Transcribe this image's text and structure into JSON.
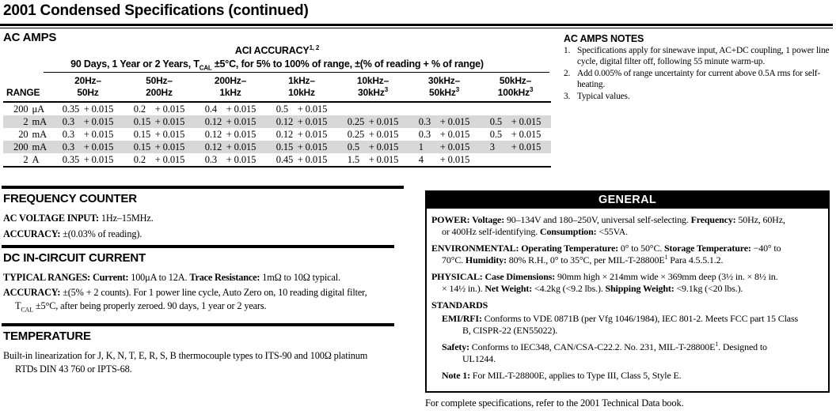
{
  "colors": {
    "ink": "#000000",
    "shaded_row": "#d8d8d8"
  },
  "title": "2001 Condensed Specifications (continued)",
  "footer": "For complete specifications, refer to the 2001 Technical Data book.",
  "ac_amps": {
    "heading": "AC AMPS",
    "table": {
      "title": "ACI ACCURACY",
      "title_sup": "1, 2",
      "subtitle": {
        "t1": "90 Days, 1 Year or 2 Years, T",
        "sub": "CAL",
        "t2": " ±5°C, for 5% to 100% of range, ±(% of reading + % of range)"
      },
      "range_header": "RANGE",
      "columns": [
        {
          "top": "20Hz–",
          "bot": "50Hz",
          "sup": ""
        },
        {
          "top": "50Hz–",
          "bot": "200Hz",
          "sup": ""
        },
        {
          "top": "200Hz–",
          "bot": "1kHz",
          "sup": ""
        },
        {
          "top": "1kHz–",
          "bot": "10kHz",
          "sup": ""
        },
        {
          "top": "10kHz–",
          "bot": "30kHz",
          "sup": "3"
        },
        {
          "top": "30kHz–",
          "bot": "50kHz",
          "sup": "3"
        },
        {
          "top": "50kHz–",
          "bot": "100kHz",
          "sup": "3"
        }
      ],
      "rows": [
        {
          "range": "200",
          "unit": "μA",
          "cells": [
            [
              "0.35",
              "+ 0.015"
            ],
            [
              "0.2",
              "+ 0.015"
            ],
            [
              "0.4",
              "+ 0.015"
            ],
            [
              "0.5",
              "+ 0.015"
            ],
            [
              "",
              ""
            ],
            [
              "",
              ""
            ],
            [
              "",
              ""
            ]
          ]
        },
        {
          "range": "2",
          "unit": "mA",
          "cells": [
            [
              "0.3",
              "+ 0.015"
            ],
            [
              "0.15",
              "+ 0.015"
            ],
            [
              "0.12",
              "+ 0.015"
            ],
            [
              "0.12",
              "+ 0.015"
            ],
            [
              "0.25",
              "+ 0.015"
            ],
            [
              "0.3",
              "+ 0.015"
            ],
            [
              "0.5",
              "+ 0.015"
            ]
          ]
        },
        {
          "range": "20",
          "unit": "mA",
          "cells": [
            [
              "0.3",
              "+ 0.015"
            ],
            [
              "0.15",
              "+ 0.015"
            ],
            [
              "0.12",
              "+ 0.015"
            ],
            [
              "0.12",
              "+ 0.015"
            ],
            [
              "0.25",
              "+ 0.015"
            ],
            [
              "0.3",
              "+ 0.015"
            ],
            [
              "0.5",
              "+ 0.015"
            ]
          ]
        },
        {
          "range": "200",
          "unit": "mA",
          "cells": [
            [
              "0.3",
              "+ 0.015"
            ],
            [
              "0.15",
              "+ 0.015"
            ],
            [
              "0.12",
              "+ 0.015"
            ],
            [
              "0.15",
              "+ 0.015"
            ],
            [
              "0.5",
              "+ 0.015"
            ],
            [
              "1",
              "+ 0.015"
            ],
            [
              "3",
              "+ 0.015"
            ]
          ]
        },
        {
          "range": "2",
          "unit": "A",
          "cells": [
            [
              "0.35",
              "+ 0.015"
            ],
            [
              "0.2",
              "+ 0.015"
            ],
            [
              "0.3",
              "+ 0.015"
            ],
            [
              "0.45",
              "+ 0.015"
            ],
            [
              "1.5",
              "+ 0.015"
            ],
            [
              "4",
              "+ 0.015"
            ],
            [
              "",
              ""
            ]
          ]
        }
      ]
    }
  },
  "notes": {
    "heading": "AC AMPS NOTES",
    "items": [
      {
        "num": "1.",
        "line1": "Specifications apply for sinewave input, AC+DC coupling, 1 power line",
        "line2": "cycle, digital filter off, following 55 minute warm-up."
      },
      {
        "num": "2.",
        "line1": "Add 0.005% of range uncertainty for current above 0.5A rms for self-",
        "line2": "heating."
      },
      {
        "num": "3.",
        "line1": "Typical values.",
        "line2": ""
      }
    ]
  },
  "frequency_counter": {
    "heading": "FREQUENCY COUNTER",
    "p1_label": "AC VOLTAGE INPUT:",
    "p1_text": " 1Hz–15MHz.",
    "p2_label": "ACCURACY:",
    "p2_text": " ±(0.03% of reading)."
  },
  "dc_in_circuit": {
    "heading": "DC IN-CIRCUIT CURRENT",
    "p1_label1": "TYPICAL RANGES: Current:",
    "p1_text1": " 100μA to 12A. ",
    "p1_label2": "Trace Resistance:",
    "p1_text2": " 1mΩ to 10Ω typical.",
    "p2_label": "ACCURACY:",
    "p2_line1": " ±(5% + 2 counts). For 1 power line cycle, Auto Zero on, 10 reading digital filter,",
    "p2_line2_t1": "T",
    "p2_line2_sub": "CAL",
    "p2_line2_t2": " ±5°C, after being properly zeroed. 90 days, 1 year or 2 years."
  },
  "temperature": {
    "heading": "TEMPERATURE",
    "line1": "Built-in linearization for J, K, N, T, E, R, S, B thermocouple types to ITS-90 and 100Ω platinum",
    "line2": "RTDs DIN 43 760 or IPTS-68."
  },
  "general": {
    "heading": "GENERAL",
    "power": {
      "l1b1": "POWER: Voltage: ",
      "l1t1": "90–134V and 180–250V, universal self-selecting. ",
      "l1b2": "Frequency: ",
      "l1t2": "50Hz, 60Hz,",
      "l2t1": "or 400Hz self-identifying. ",
      "l2b1": "Consumption: ",
      "l2t2": "<55VA."
    },
    "environmental": {
      "l1b1": "ENVIRONMENTAL: Operating Temperature: ",
      "l1t1": "0° to 50°C. ",
      "l1b2": "Storage Temperature: ",
      "l1t2": "−40° to",
      "l2t1": "70°C. ",
      "l2b1": "Humidity: ",
      "l2t2": "80% R.H., 0° to 35°C, per MIL-T-28800E",
      "l2sup": "1",
      "l2t3": " Para 4.5.5.1.2."
    },
    "physical": {
      "l1b1": "PHYSICAL: Case Dimensions: ",
      "l1t1": "90mm high × 214mm wide × 369mm deep (3½ in. × 8½ in.",
      "l2t1": "× 14½ in.). ",
      "l2b1": "Net Weight: ",
      "l2t2": "<4.2kg (<9.2 lbs.). ",
      "l2b2": "Shipping Weight: ",
      "l2t3": "<9.1kg (<20 lbs.)."
    },
    "standards_label": "STANDARDS",
    "emi": {
      "l1b1": "EMI/RFI: ",
      "l1t1": "Conforms to VDE 0871B (per Vfg 1046/1984), IEC 801-2. Meets FCC part 15 Class",
      "l2t1": "B, CISPR-22 (EN55022)."
    },
    "safety": {
      "l1b1": "Safety: ",
      "l1t1": "Conforms to IEC348, CAN/CSA-C22.2. No. 231, MIL-T-28800E",
      "l1sup": "1",
      "l1t2": ". Designed to",
      "l2t1": "UL1244."
    },
    "note1": {
      "l1b1": "Note 1: ",
      "l1t1": "For MIL-T-28800E, applies to Type III, Class 5, Style E."
    }
  }
}
